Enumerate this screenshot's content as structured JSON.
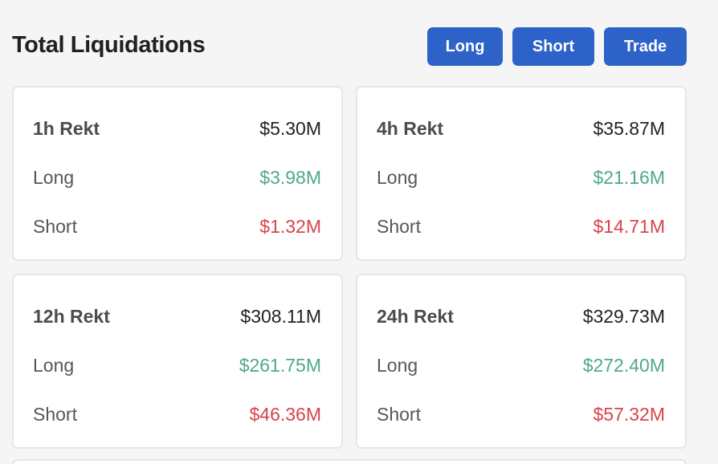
{
  "header": {
    "title": "Total Liquidations",
    "buttons": {
      "long": "Long",
      "short": "Short",
      "trade": "Trade"
    }
  },
  "cards": [
    {
      "period_label": "1h Rekt",
      "total": "$5.30M",
      "long_label": "Long",
      "long_value": "$3.98M",
      "short_label": "Short",
      "short_value": "$1.32M"
    },
    {
      "period_label": "4h Rekt",
      "total": "$35.87M",
      "long_label": "Long",
      "long_value": "$21.16M",
      "short_label": "Short",
      "short_value": "$14.71M"
    },
    {
      "period_label": "12h Rekt",
      "total": "$308.11M",
      "long_label": "Long",
      "long_value": "$261.75M",
      "short_label": "Short",
      "short_value": "$46.36M"
    },
    {
      "period_label": "24h Rekt",
      "total": "$329.73M",
      "long_label": "Long",
      "long_value": "$272.40M",
      "short_label": "Short",
      "short_value": "$57.32M"
    }
  ],
  "colors": {
    "accent": "#2d63c8",
    "long": "#4fa985",
    "short": "#d8434a"
  }
}
